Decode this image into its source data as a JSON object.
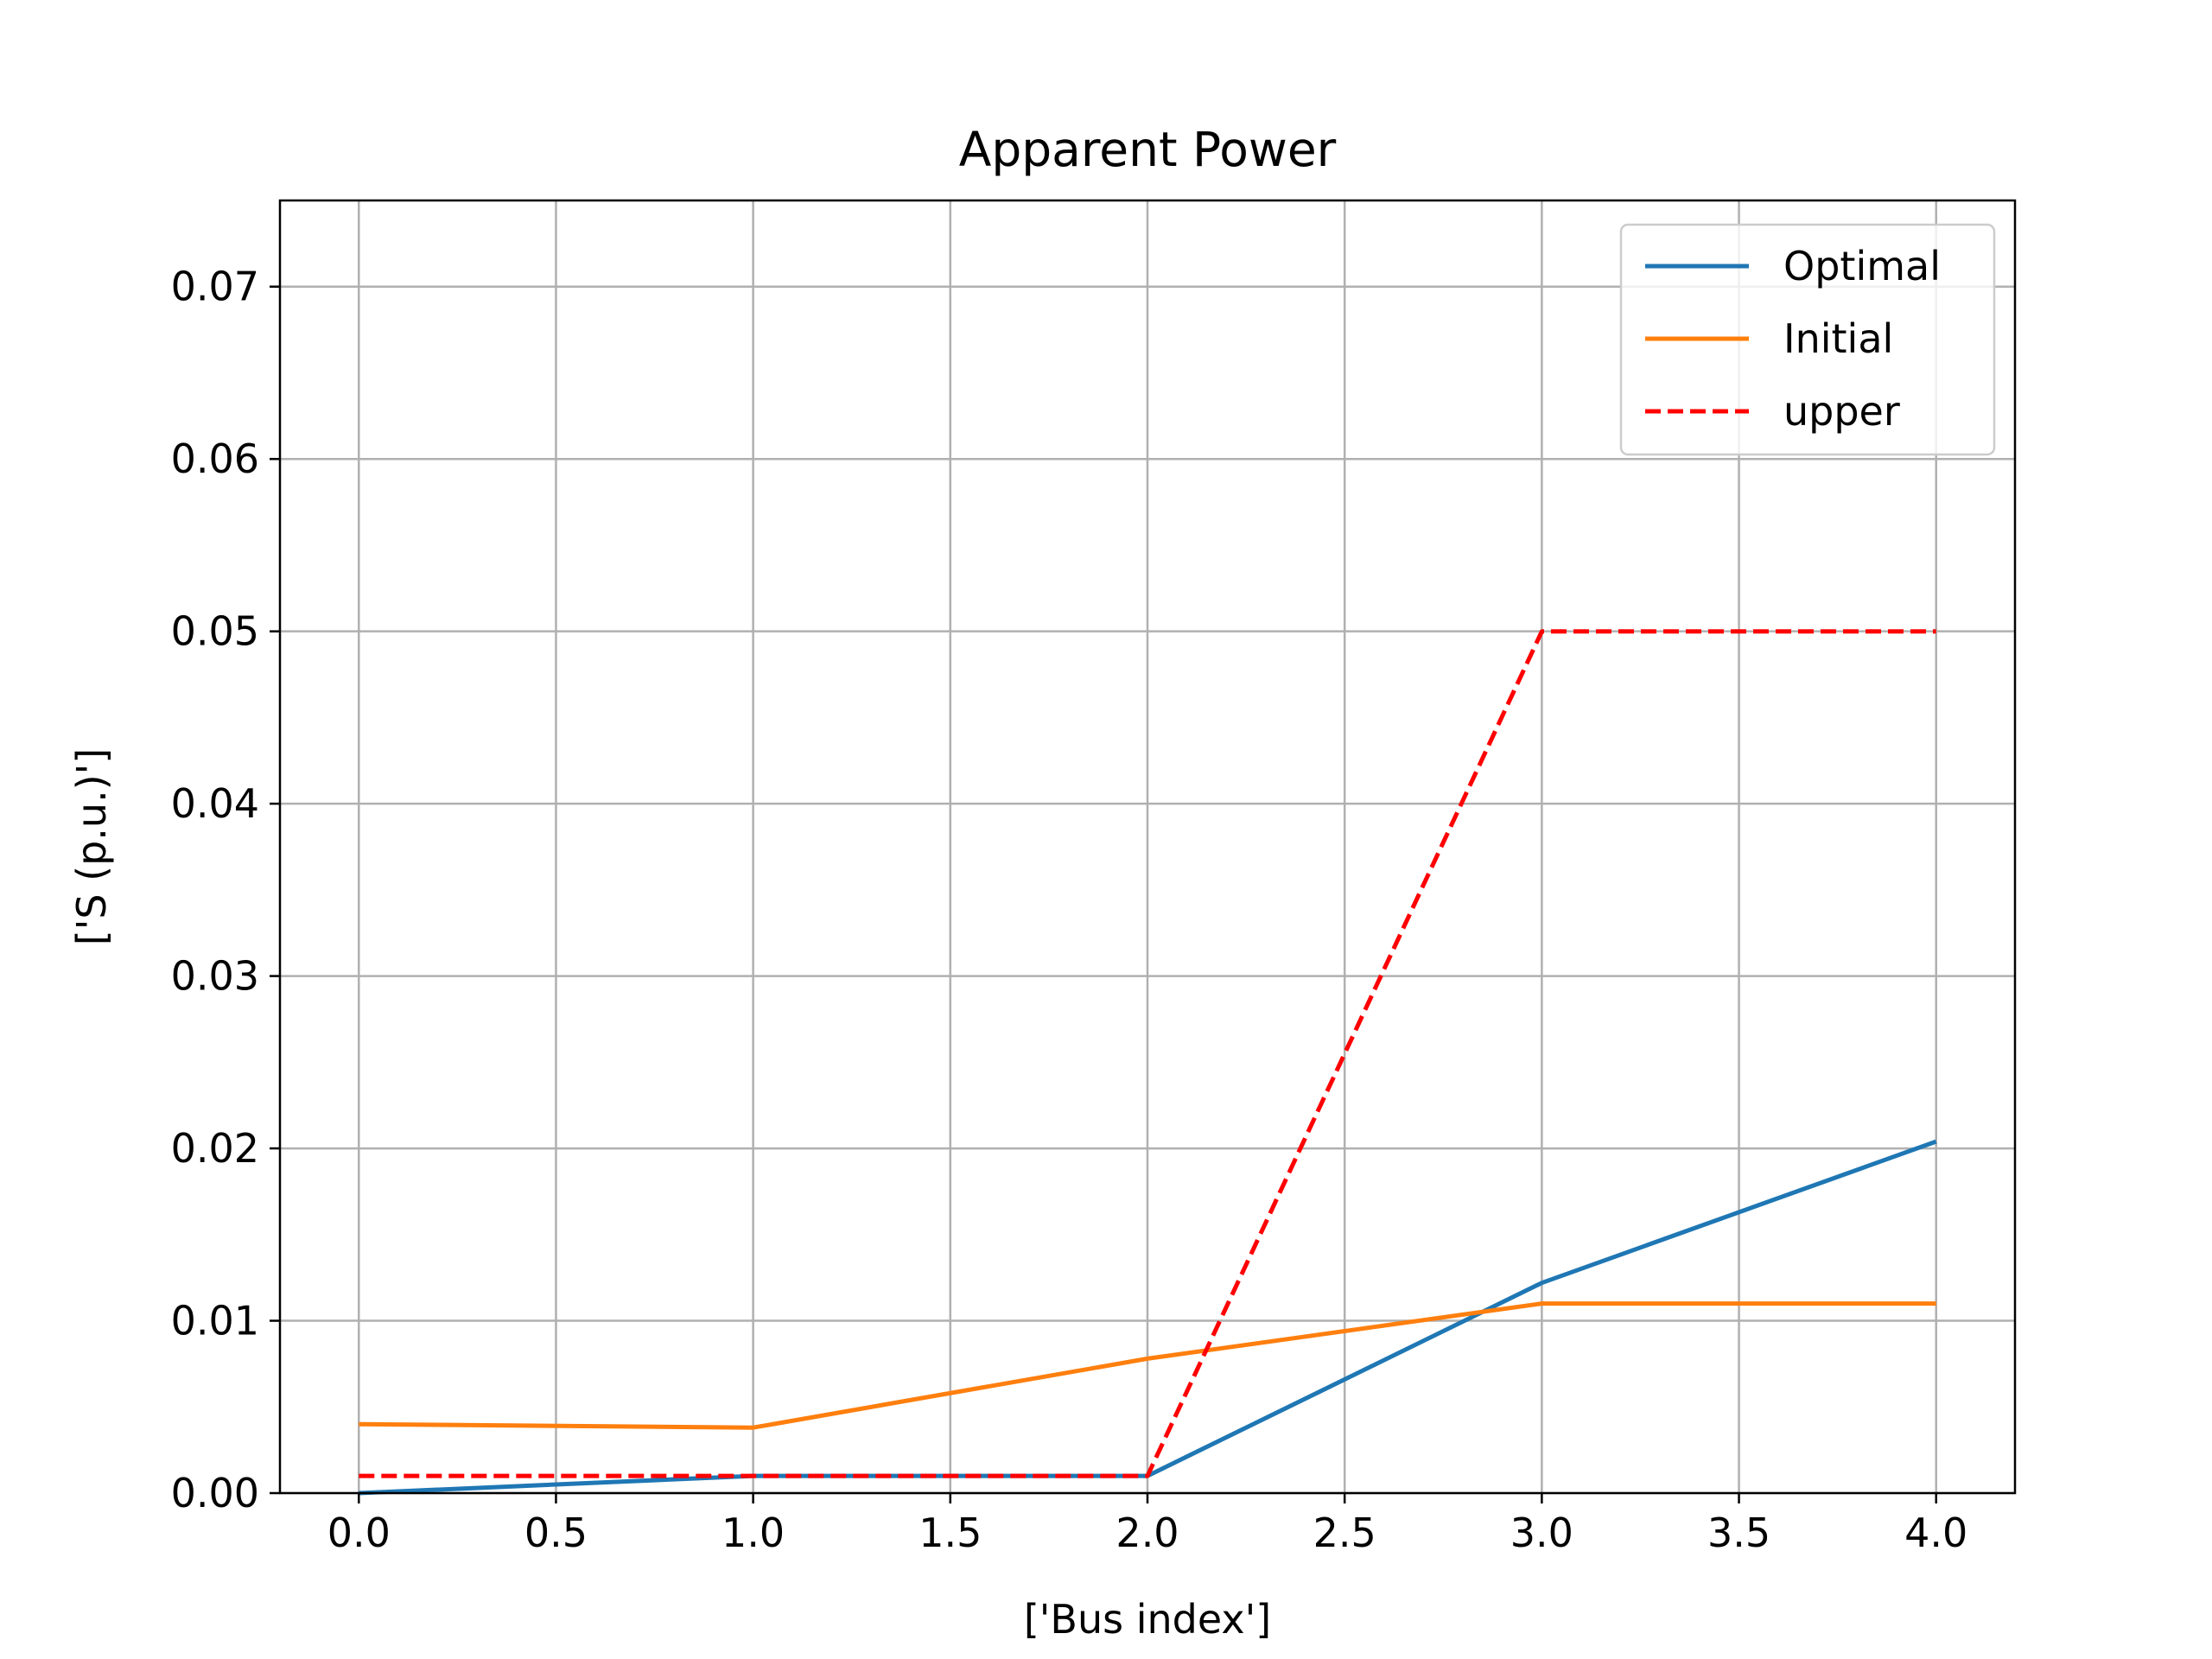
{
  "chart_data": {
    "type": "line",
    "title": "Apparent Power",
    "xlabel": "['Bus index']",
    "ylabel": "['S (p.u.)']",
    "x": [
      0,
      1,
      2,
      3,
      4
    ],
    "xlim": [
      -0.2,
      4.2
    ],
    "ylim": [
      0,
      0.075
    ],
    "xticks": [
      "0.0",
      "0.5",
      "1.0",
      "1.5",
      "2.0",
      "2.5",
      "3.0",
      "3.5",
      "4.0"
    ],
    "yticks": [
      "0.00",
      "0.01",
      "0.02",
      "0.03",
      "0.04",
      "0.05",
      "0.06",
      "0.07"
    ],
    "grid": true,
    "legend_position": "top-right",
    "series": [
      {
        "name": "Optimal",
        "values": [
          0.0,
          0.001,
          0.001,
          0.0122,
          0.0204
        ],
        "color": "#1f77b4",
        "style": "solid"
      },
      {
        "name": "Initial",
        "values": [
          0.004,
          0.0038,
          0.0078,
          0.011,
          0.011
        ],
        "color": "#ff7f0e",
        "style": "solid"
      },
      {
        "name": "upper",
        "values": [
          0.001,
          0.001,
          0.001,
          0.05,
          0.05
        ],
        "color": "#ff0000",
        "style": "dashed"
      }
    ]
  }
}
